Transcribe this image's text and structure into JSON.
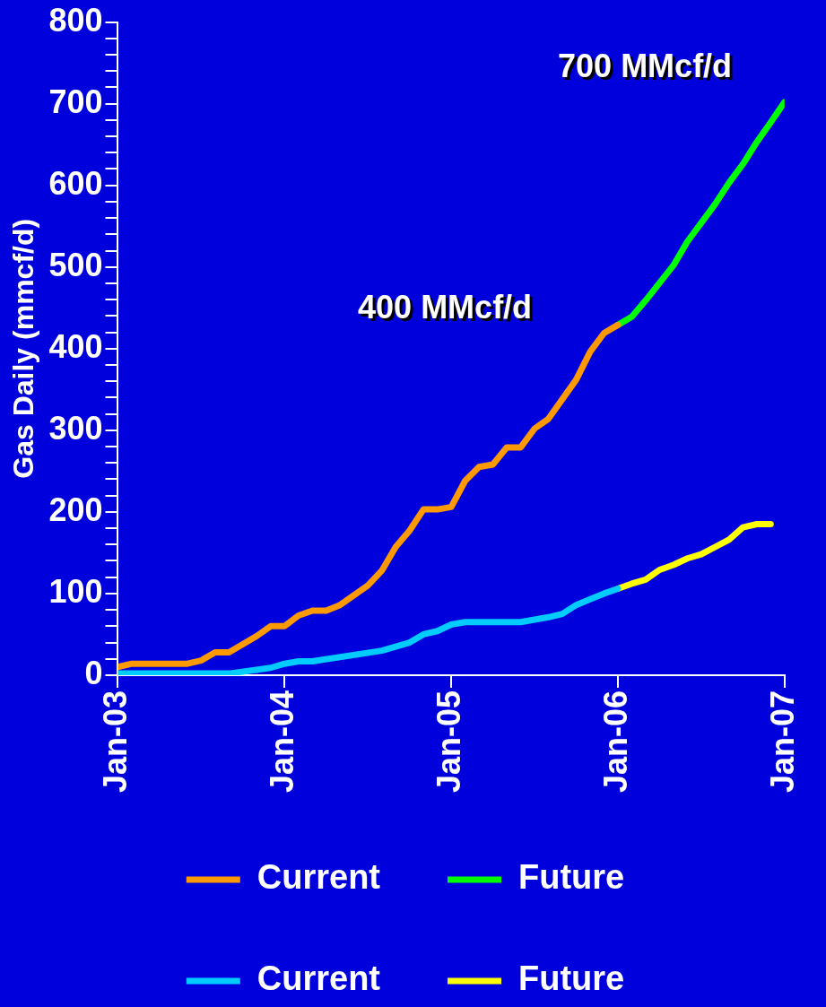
{
  "chart_data": {
    "type": "line",
    "ylabel": "Gas Daily (mmcf/d)",
    "xlim": [
      "2003-01",
      "2007-01"
    ],
    "xticks": [
      {
        "value": "2003-01",
        "label": "Jan-03"
      },
      {
        "value": "2004-01",
        "label": "Jan-04"
      },
      {
        "value": "2005-01",
        "label": "Jan-05"
      },
      {
        "value": "2006-01",
        "label": "Jan-06"
      },
      {
        "value": "2007-01",
        "label": "Jan-07"
      }
    ],
    "ylim": [
      0,
      800
    ],
    "yticks": [
      0,
      {
        "value": 20,
        "label": null
      },
      {
        "value": 40,
        "label": null
      },
      {
        "value": 60,
        "label": null
      },
      {
        "value": 80,
        "label": null
      },
      100,
      {
        "value": 120,
        "label": null
      },
      {
        "value": 140,
        "label": null
      },
      {
        "value": 160,
        "label": null
      },
      {
        "value": 180,
        "label": null
      },
      200,
      {
        "value": 220,
        "label": null
      },
      {
        "value": 240,
        "label": null
      },
      {
        "value": 260,
        "label": null
      },
      {
        "value": 280,
        "label": null
      },
      300,
      {
        "value": 320,
        "label": null
      },
      {
        "value": 340,
        "label": null
      },
      {
        "value": 360,
        "label": null
      },
      {
        "value": 380,
        "label": null
      },
      400,
      {
        "value": 420,
        "label": null
      },
      {
        "value": 440,
        "label": null
      },
      {
        "value": 460,
        "label": null
      },
      {
        "value": 480,
        "label": null
      },
      500,
      {
        "value": 520,
        "label": null
      },
      {
        "value": 540,
        "label": null
      },
      {
        "value": 560,
        "label": null
      },
      {
        "value": 580,
        "label": null
      },
      600,
      {
        "value": 620,
        "label": null
      },
      {
        "value": 640,
        "label": null
      },
      {
        "value": 660,
        "label": null
      },
      {
        "value": 680,
        "label": null
      },
      700,
      {
        "value": 720,
        "label": null
      },
      {
        "value": 740,
        "label": null
      },
      {
        "value": 760,
        "label": null
      },
      {
        "value": 780,
        "label": null
      },
      800
    ],
    "grid": false,
    "legend": "bottom",
    "marker": "none",
    "line_style": "solid",
    "annotations": [
      "400 MMcf/d",
      "700 MMcf/d"
    ],
    "series": [
      {
        "name": "Current",
        "color": "#ff9900",
        "x": [
          "2003-01",
          "2003-02",
          "2003-06",
          "2003-07",
          "2003-08",
          "2003-09",
          "2003-11",
          "2003-12",
          "2004-01",
          "2004-02",
          "2004-03",
          "2004-04",
          "2004-05",
          "2004-07",
          "2004-08",
          "2004-09",
          "2004-10",
          "2004-11",
          "2004-12",
          "2005-01",
          "2005-02",
          "2005-03",
          "2005-04",
          "2005-05",
          "2005-06",
          "2005-07",
          "2005-08",
          "2005-10",
          "2005-11",
          "2005-12",
          "2006-01"
        ],
        "values": [
          10,
          14,
          14,
          18,
          28,
          28,
          48,
          60,
          60,
          73,
          79,
          79,
          86,
          110,
          128,
          157,
          177,
          203,
          203,
          206,
          238,
          255,
          258,
          279,
          279,
          302,
          314,
          362,
          396,
          419,
          429
        ]
      },
      {
        "name": "Future",
        "color": "#00ff00",
        "x": [
          "2006-01",
          "2006-02",
          "2006-03",
          "2006-05",
          "2006-06",
          "2006-08",
          "2006-09",
          "2006-10",
          "2006-11",
          "2006-12",
          "2007-01"
        ],
        "values": [
          429,
          439,
          459,
          502,
          531,
          577,
          603,
          626,
          653,
          677,
          702
        ]
      },
      {
        "name": "Current",
        "color": "#00ccff",
        "x": [
          "2003-01",
          "2003-09",
          "2003-12",
          "2004-01",
          "2004-02",
          "2004-03",
          "2004-08",
          "2004-10",
          "2004-11",
          "2004-12",
          "2005-01",
          "2005-02",
          "2005-06",
          "2005-08",
          "2005-09",
          "2005-10",
          "2005-11",
          "2005-12",
          "2006-01"
        ],
        "values": [
          2,
          2,
          9,
          14,
          17,
          17,
          30,
          40,
          50,
          54,
          62,
          65,
          65,
          71,
          75,
          86,
          93,
          100,
          106
        ]
      },
      {
        "name": "Future",
        "color": "#ffff00",
        "x": [
          "2006-01",
          "2006-02",
          "2006-03",
          "2006-04",
          "2006-05",
          "2006-06",
          "2006-07",
          "2006-08",
          "2006-09",
          "2006-10",
          "2006-11",
          "2006-12"
        ],
        "values": [
          106,
          112,
          117,
          129,
          135,
          143,
          148,
          157,
          166,
          181,
          185,
          185
        ]
      }
    ]
  }
}
